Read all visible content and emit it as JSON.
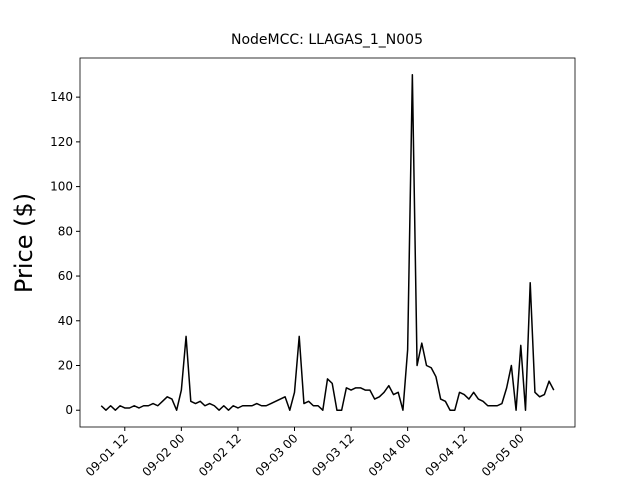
{
  "chart_data": {
    "type": "line",
    "title": "NodeMCC: LLAGAS_1_N005",
    "y_label": "Price ($)",
    "x": [
      "09-01 07",
      "09-01 08",
      "09-01 09",
      "09-01 10",
      "09-01 11",
      "09-01 12",
      "09-01 13",
      "09-01 14",
      "09-01 15",
      "09-01 16",
      "09-01 17",
      "09-01 18",
      "09-01 19",
      "09-01 20",
      "09-01 21",
      "09-01 22",
      "09-01 23",
      "09-02 00",
      "09-02 01",
      "09-02 02",
      "09-02 03",
      "09-02 04",
      "09-02 05",
      "09-02 06",
      "09-02 07",
      "09-02 08",
      "09-02 09",
      "09-02 10",
      "09-02 11",
      "09-02 12",
      "09-02 13",
      "09-02 14",
      "09-02 15",
      "09-02 16",
      "09-02 17",
      "09-02 18",
      "09-02 19",
      "09-02 20",
      "09-02 21",
      "09-02 22",
      "09-02 23",
      "09-03 00",
      "09-03 01",
      "09-03 02",
      "09-03 03",
      "09-03 04",
      "09-03 05",
      "09-03 06",
      "09-03 07",
      "09-03 08",
      "09-03 09",
      "09-03 10",
      "09-03 11",
      "09-03 12",
      "09-03 13",
      "09-03 14",
      "09-03 15",
      "09-03 16",
      "09-03 17",
      "09-03 18",
      "09-03 19",
      "09-03 20",
      "09-03 21",
      "09-03 22",
      "09-03 23",
      "09-04 00",
      "09-04 01",
      "09-04 02",
      "09-04 03",
      "09-04 04",
      "09-04 05",
      "09-04 06",
      "09-04 07",
      "09-04 08",
      "09-04 09",
      "09-04 10",
      "09-04 11",
      "09-04 12",
      "09-04 13",
      "09-04 14",
      "09-04 15",
      "09-04 16",
      "09-04 17",
      "09-04 18",
      "09-04 19",
      "09-04 20",
      "09-04 21",
      "09-04 22",
      "09-04 23",
      "09-05 00",
      "09-05 01",
      "09-05 02",
      "09-05 03",
      "09-05 04",
      "09-05 05",
      "09-05 06",
      "09-05 07"
    ],
    "series": [
      {
        "name": "NodeMCC",
        "color": "#000000",
        "values": [
          2,
          0,
          2,
          0,
          2,
          1,
          1,
          2,
          1,
          2,
          2,
          3,
          2,
          4,
          6,
          5,
          0,
          9,
          33,
          4,
          3,
          4,
          2,
          3,
          2,
          0,
          2,
          0,
          2,
          1,
          2,
          2,
          2,
          3,
          2,
          2,
          3,
          4,
          5,
          6,
          0,
          8,
          33,
          3,
          4,
          2,
          2,
          0,
          14,
          12,
          0,
          0,
          10,
          9,
          10,
          10,
          9,
          9,
          5,
          6,
          8,
          11,
          7,
          8,
          0,
          27,
          150,
          20,
          30,
          20,
          19,
          15,
          5,
          4,
          0,
          0,
          8,
          7,
          5,
          8,
          5,
          4,
          2,
          2,
          2,
          3,
          10,
          20,
          0,
          29,
          0,
          57,
          8,
          6,
          7,
          13,
          9
        ]
      }
    ],
    "xlim": [
      "09-01 02:30",
      "09-05 11:30"
    ],
    "xticks": [
      "09-01 12",
      "09-02 00",
      "09-02 12",
      "09-03 00",
      "09-03 12",
      "09-04 00",
      "09-04 12",
      "09-05 00"
    ],
    "ylim": [
      -7.5,
      157.5
    ],
    "yticks": [
      0,
      20,
      40,
      60,
      80,
      100,
      120,
      140
    ]
  }
}
